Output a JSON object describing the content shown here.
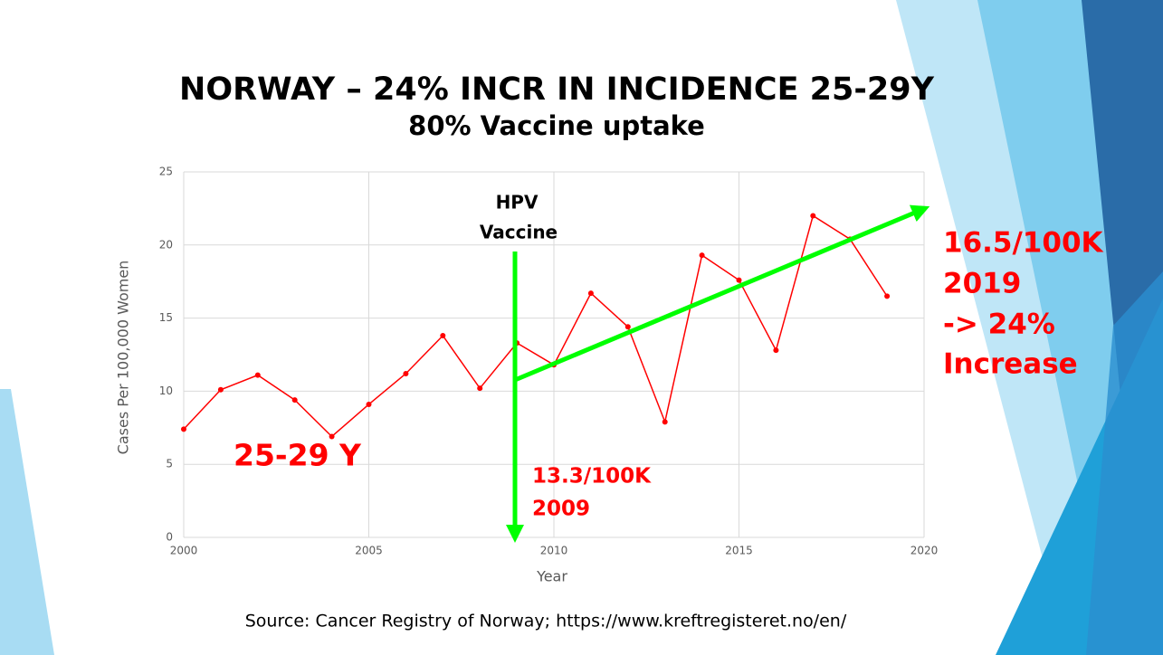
{
  "chart_data": {
    "type": "line",
    "title": "NORWAY – 24% INCR IN INCIDENCE 25-29Y",
    "subtitle": "80% Vaccine uptake",
    "x_label": "Year",
    "y_label": "Cases Per 100,000 Women",
    "x": [
      2000,
      2001,
      2002,
      2003,
      2004,
      2005,
      2006,
      2007,
      2008,
      2009,
      2010,
      2011,
      2012,
      2013,
      2014,
      2015,
      2016,
      2017,
      2018,
      2019
    ],
    "series": [
      {
        "name": "25-29 Y",
        "color": "#ff0000",
        "values": [
          7.4,
          10.1,
          11.1,
          9.4,
          6.9,
          9.1,
          11.2,
          13.8,
          10.2,
          13.3,
          11.8,
          16.7,
          14.4,
          7.9,
          19.3,
          17.6,
          12.8,
          22.0,
          20.4,
          16.5
        ]
      }
    ],
    "xlim": [
      2000,
      2020
    ],
    "xticks": [
      2000,
      2005,
      2010,
      2015,
      2020
    ],
    "ylim": [
      0,
      25
    ],
    "yticks": [
      0,
      5,
      10,
      15,
      20,
      25
    ],
    "grid": true,
    "annotations": [
      {
        "lines": [
          "HPV",
          "Vaccine"
        ]
      },
      {
        "lines": [
          "13.3/100K",
          "2009"
        ]
      },
      {
        "lines": [
          "16.5/100K",
          "2019",
          "-> 24%",
          "Increase"
        ]
      }
    ],
    "source": "Source: Cancer Registry of Norway; https://www.kreftregisteret.no/en/"
  }
}
